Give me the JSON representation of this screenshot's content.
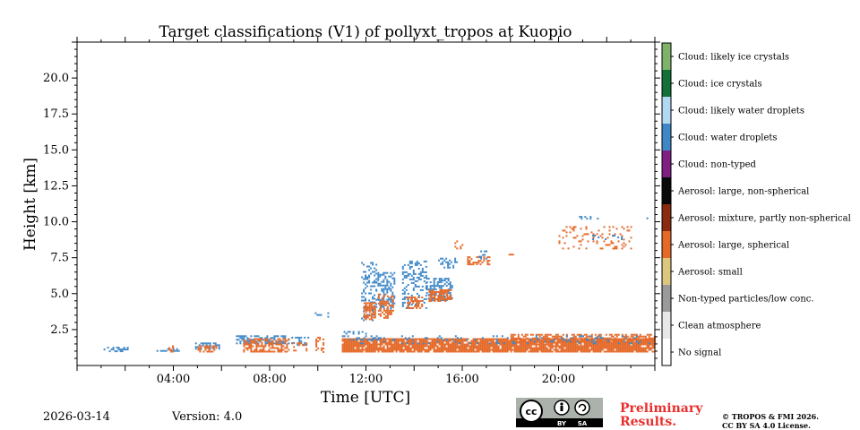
{
  "chart_data": {
    "type": "heatmap",
    "title": "Target classifications (V1) of pollyxt_tropos at Kuopio",
    "xlabel": "Time [UTC]",
    "ylabel": "Height [km]",
    "xlim": [
      0,
      24
    ],
    "ylim": [
      0,
      22.5
    ],
    "x_ticks": [
      4,
      8,
      12,
      16,
      20
    ],
    "x_tick_labels": [
      "04:00",
      "08:00",
      "12:00",
      "16:00",
      "20:00"
    ],
    "y_ticks": [
      2.5,
      5.0,
      7.5,
      10.0,
      12.5,
      15.0,
      17.5,
      20.0
    ],
    "y_tick_labels": [
      "2.5",
      "5.0",
      "7.5",
      "10.0",
      "12.5",
      "15.0",
      "17.5",
      "20.0"
    ],
    "classes": [
      {
        "name": "No signal",
        "color": "#ffffff"
      },
      {
        "name": "Clean atmosphere",
        "color": "#e8e8e8"
      },
      {
        "name": "Non-typed particles/low conc.",
        "color": "#9a9a9a"
      },
      {
        "name": "Aerosol: small",
        "color": "#dcc77f"
      },
      {
        "name": "Aerosol: large, spherical",
        "color": "#e56a2a"
      },
      {
        "name": "Aerosol: mixture, partly non-spherical",
        "color": "#8a2a0e"
      },
      {
        "name": "Aerosol: large, non-spherical",
        "color": "#0a0a0a"
      },
      {
        "name": "Cloud: non-typed",
        "color": "#7d2082"
      },
      {
        "name": "Cloud: water droplets",
        "color": "#3f88c8"
      },
      {
        "name": "Cloud: likely water droplets",
        "color": "#b3d9f2"
      },
      {
        "name": "Cloud: ice crystals",
        "color": "#127038"
      },
      {
        "name": "Cloud: likely ice crystals",
        "color": "#7fb26a"
      }
    ],
    "regions": [
      {
        "cls": 8,
        "t0": 1.1,
        "t1": 2.1,
        "h0": 1.0,
        "h1": 1.3,
        "density": 0.5
      },
      {
        "cls": 8,
        "t0": 3.3,
        "t1": 4.2,
        "h0": 1.0,
        "h1": 1.2,
        "density": 0.4
      },
      {
        "cls": 4,
        "t0": 3.8,
        "t1": 4.0,
        "h0": 1.0,
        "h1": 1.4,
        "density": 0.6
      },
      {
        "cls": 8,
        "t0": 4.9,
        "t1": 5.9,
        "h0": 1.2,
        "h1": 1.6,
        "density": 0.6
      },
      {
        "cls": 4,
        "t0": 5.0,
        "t1": 5.8,
        "h0": 1.0,
        "h1": 1.4,
        "density": 0.5
      },
      {
        "cls": 8,
        "t0": 6.6,
        "t1": 8.8,
        "h0": 1.6,
        "h1": 2.1,
        "density": 0.6
      },
      {
        "cls": 4,
        "t0": 6.9,
        "t1": 8.8,
        "h0": 1.0,
        "h1": 1.9,
        "density": 0.55
      },
      {
        "cls": 8,
        "t0": 8.9,
        "t1": 9.6,
        "h0": 1.5,
        "h1": 2.0,
        "density": 0.4
      },
      {
        "cls": 4,
        "t0": 8.9,
        "t1": 9.5,
        "h0": 1.0,
        "h1": 1.6,
        "density": 0.4
      },
      {
        "cls": 8,
        "t0": 9.8,
        "t1": 10.6,
        "h0": 3.4,
        "h1": 3.7,
        "density": 0.25
      },
      {
        "cls": 4,
        "t0": 9.9,
        "t1": 10.2,
        "h0": 1.0,
        "h1": 2.0,
        "density": 0.4
      },
      {
        "cls": 8,
        "t0": 11.0,
        "t1": 12.0,
        "h0": 2.2,
        "h1": 2.4,
        "density": 0.3
      },
      {
        "cls": 4,
        "t0": 11.0,
        "t1": 24.0,
        "h0": 1.0,
        "h1": 1.9,
        "density": 0.9
      },
      {
        "cls": 4,
        "t0": 18.0,
        "t1": 24.0,
        "h0": 1.6,
        "h1": 2.2,
        "density": 0.6
      },
      {
        "cls": 8,
        "t0": 11.0,
        "t1": 12.5,
        "h0": 1.8,
        "h1": 2.1,
        "density": 0.3
      },
      {
        "cls": 8,
        "t0": 11.8,
        "t1": 12.4,
        "h0": 3.2,
        "h1": 7.2,
        "density": 0.35
      },
      {
        "cls": 4,
        "t0": 11.9,
        "t1": 12.4,
        "h0": 3.2,
        "h1": 4.4,
        "density": 0.7
      },
      {
        "cls": 8,
        "t0": 12.4,
        "t1": 13.2,
        "h0": 4.0,
        "h1": 6.5,
        "density": 0.35
      },
      {
        "cls": 4,
        "t0": 12.5,
        "t1": 13.1,
        "h0": 3.3,
        "h1": 5.0,
        "density": 0.5
      },
      {
        "cls": 8,
        "t0": 13.5,
        "t1": 14.5,
        "h0": 4.0,
        "h1": 7.3,
        "density": 0.3
      },
      {
        "cls": 4,
        "t0": 13.7,
        "t1": 14.3,
        "h0": 4.0,
        "h1": 4.8,
        "density": 0.6
      },
      {
        "cls": 8,
        "t0": 14.5,
        "t1": 15.6,
        "h0": 4.6,
        "h1": 6.1,
        "density": 0.45
      },
      {
        "cls": 4,
        "t0": 14.6,
        "t1": 15.5,
        "h0": 4.5,
        "h1": 5.3,
        "density": 0.7
      },
      {
        "cls": 8,
        "t0": 15.0,
        "t1": 15.8,
        "h0": 6.8,
        "h1": 7.5,
        "density": 0.3
      },
      {
        "cls": 4,
        "t0": 16.2,
        "t1": 17.1,
        "h0": 7.0,
        "h1": 7.6,
        "density": 0.5
      },
      {
        "cls": 8,
        "t0": 16.6,
        "t1": 17.0,
        "h0": 7.5,
        "h1": 8.0,
        "density": 0.3
      },
      {
        "cls": 4,
        "t0": 15.6,
        "t1": 16.0,
        "h0": 8.2,
        "h1": 8.7,
        "density": 0.2
      },
      {
        "cls": 4,
        "t0": 17.7,
        "t1": 18.1,
        "h0": 7.6,
        "h1": 7.9,
        "density": 0.15
      },
      {
        "cls": 4,
        "t0": 20.0,
        "t1": 23.0,
        "h0": 8.2,
        "h1": 9.7,
        "density": 0.15
      },
      {
        "cls": 8,
        "t0": 20.7,
        "t1": 21.6,
        "h0": 10.1,
        "h1": 10.4,
        "density": 0.25
      },
      {
        "cls": 8,
        "t0": 21.4,
        "t1": 22.6,
        "h0": 8.8,
        "h1": 9.1,
        "density": 0.3
      },
      {
        "cls": 8,
        "t0": 23.5,
        "t1": 23.7,
        "h0": 10.1,
        "h1": 10.3,
        "density": 0.3
      },
      {
        "cls": 8,
        "t0": 11.6,
        "t1": 24.0,
        "h0": 1.6,
        "h1": 2.1,
        "density": 0.12
      }
    ]
  },
  "footer": {
    "date": "2026-03-14",
    "version": "Version: 4.0",
    "preliminary_line1": "Preliminary",
    "preliminary_line2": "Results.",
    "copyright_line1": "© TROPOS & FMI 2026.",
    "copyright_line2": "CC BY SA 4.0 License.",
    "cc_label": "cc",
    "cc_by": "BY",
    "cc_sa": "SA"
  }
}
